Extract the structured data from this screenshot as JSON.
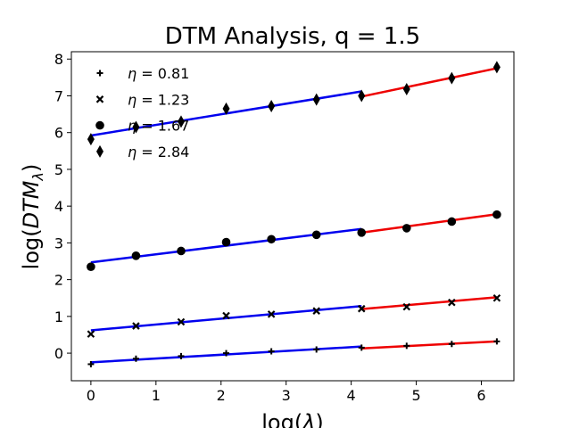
{
  "chart_data": {
    "type": "scatter",
    "title": "DTM Analysis, q = 1.5",
    "xlabel": "log(λ)",
    "ylabel": "log(DTM_λ)",
    "xlim": [
      -0.3,
      6.5
    ],
    "ylim": [
      -0.75,
      8.2
    ],
    "xticks": [
      0,
      1,
      2,
      3,
      4,
      5,
      6
    ],
    "yticks": [
      0,
      1,
      2,
      3,
      4,
      5,
      6,
      7,
      8
    ],
    "x": [
      0,
      0.693,
      1.386,
      2.079,
      2.773,
      3.466,
      4.159,
      4.852,
      5.545,
      6.238
    ],
    "legend": {
      "placement": "upper-left",
      "frame": false
    },
    "fit_colors": {
      "low": "#0000ee",
      "high": "#ee0000"
    },
    "series": [
      {
        "name": "η  =  0.81",
        "marker": "plus",
        "values": [
          -0.3,
          -0.15,
          -0.08,
          0.0,
          0.05,
          0.1,
          0.15,
          0.2,
          0.25,
          0.32
        ],
        "fit_low": [
          -0.25,
          0.18
        ],
        "fit_high": [
          0.13,
          0.32
        ]
      },
      {
        "name": "η  =  1.23",
        "marker": "x",
        "values": [
          0.52,
          0.74,
          0.85,
          1.02,
          1.06,
          1.15,
          1.21,
          1.26,
          1.38,
          1.5
        ],
        "fit_low": [
          0.62,
          1.28
        ],
        "fit_high": [
          1.2,
          1.52
        ]
      },
      {
        "name": "η  =  1.67",
        "marker": "circle",
        "values": [
          2.35,
          2.65,
          2.78,
          3.02,
          3.1,
          3.22,
          3.28,
          3.4,
          3.58,
          3.77
        ],
        "fit_low": [
          2.47,
          3.38
        ],
        "fit_high": [
          3.28,
          3.78
        ]
      },
      {
        "name": "η  =  2.84",
        "marker": "diamond",
        "values": [
          5.82,
          6.15,
          6.3,
          6.65,
          6.72,
          6.9,
          7.0,
          7.18,
          7.48,
          7.78
        ],
        "fit_low": [
          5.92,
          7.12
        ],
        "fit_high": [
          6.98,
          7.75
        ]
      }
    ]
  }
}
